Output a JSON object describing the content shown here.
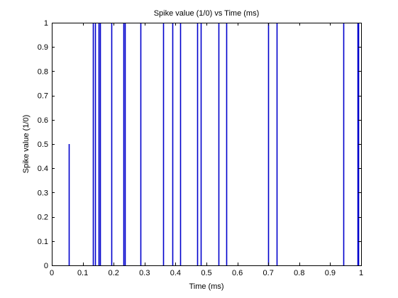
{
  "chart_data": {
    "type": "line",
    "title": "Spike value (1/0) vs Time (ms)",
    "xlabel": "Time (ms)",
    "ylabel": "Spike value (1/0)",
    "xlim": [
      0,
      1
    ],
    "ylim": [
      0,
      1
    ],
    "xticks": [
      "0",
      "0.1",
      "0.2",
      "0.3",
      "0.4",
      "0.5",
      "0.6",
      "0.7",
      "0.8",
      "0.9",
      "1"
    ],
    "yticks": [
      "0",
      "0.1",
      "0.2",
      "0.3",
      "0.4",
      "0.5",
      "0.6",
      "0.7",
      "0.8",
      "0.9",
      "1"
    ],
    "grid": false,
    "legend": "none",
    "line_color": "#0000cc",
    "series": [
      {
        "x": [
          0.055,
          0.134,
          0.141,
          0.151,
          0.156,
          0.193,
          0.231,
          0.236,
          0.286,
          0.361,
          0.391,
          0.416,
          0.47,
          0.482,
          0.539,
          0.564,
          0.699,
          0.727,
          0.943,
          0.988,
          0.991
        ],
        "values": [
          0.5,
          1,
          1,
          1,
          1,
          1,
          1,
          1,
          1,
          1,
          1,
          1,
          1,
          1,
          1,
          1,
          1,
          1,
          1,
          1,
          1
        ]
      }
    ]
  }
}
